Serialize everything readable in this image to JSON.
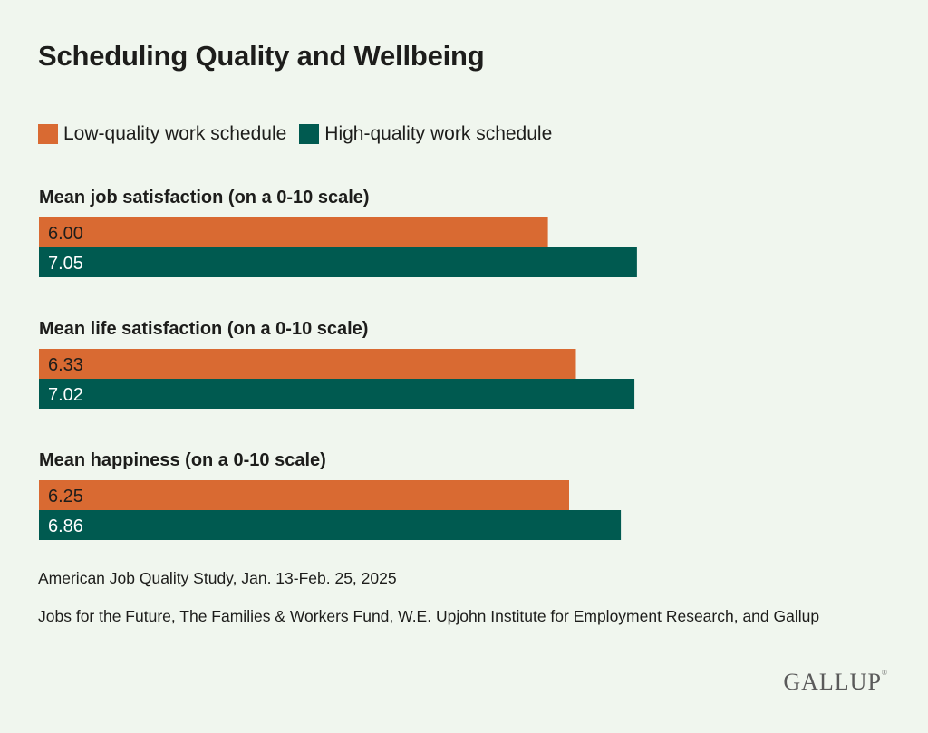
{
  "chart_data": {
    "type": "bar",
    "orientation": "horizontal",
    "title": "Scheduling Quality and Wellbeing",
    "legend": [
      {
        "name": "Low-quality work schedule",
        "color": "#d96a32"
      },
      {
        "name": "High-quality work schedule",
        "color": "#005a50"
      }
    ],
    "categories": [
      "Mean job satisfaction (on a 0-10 scale)",
      "Mean life satisfaction (on a 0-10 scale)",
      "Mean happiness (on a 0-10 scale)"
    ],
    "series": [
      {
        "name": "Low-quality work schedule",
        "values": [
          6.0,
          6.33,
          6.25
        ],
        "labels": [
          "6.00",
          "6.33",
          "6.25"
        ]
      },
      {
        "name": "High-quality work schedule",
        "values": [
          7.05,
          7.02,
          6.86
        ],
        "labels": [
          "7.05",
          "7.02",
          "6.86"
        ]
      }
    ],
    "xlim": [
      0,
      7.5
    ]
  },
  "notes": {
    "survey": "American Job Quality Study, Jan. 13-Feb. 25, 2025",
    "sources": "Jobs for the Future, The Families & Workers Fund, W.E. Upjohn Institute for Employment Research, and Gallup"
  },
  "logo": {
    "text": "GALLUP",
    "mark": "®"
  }
}
